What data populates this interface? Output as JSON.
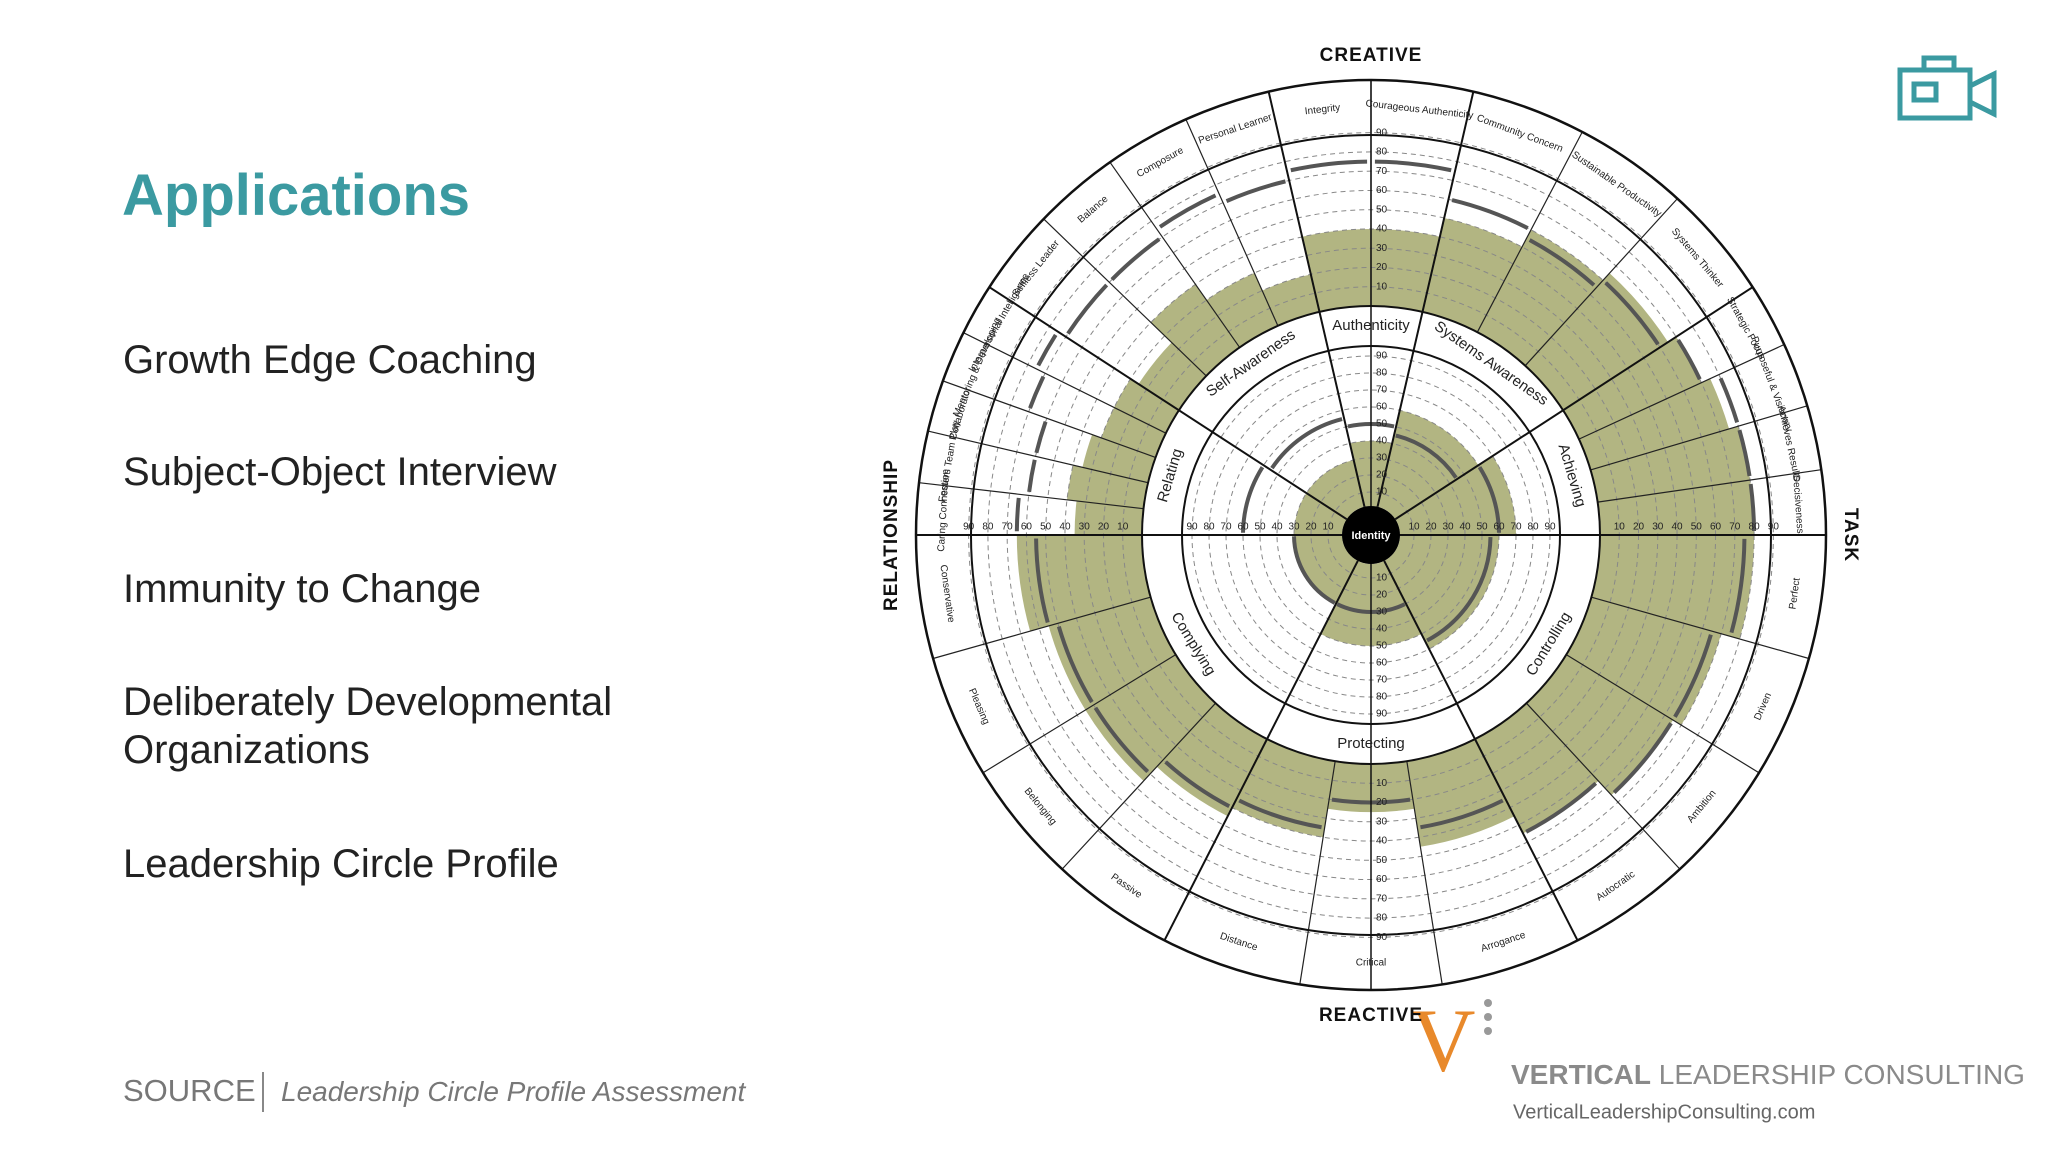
{
  "slide": {
    "title": "Applications",
    "items": [
      "Growth Edge Coaching",
      "Subject-Object Interview",
      "Immunity to Change",
      "Deliberately Developmental",
      "Organizations",
      "Leadership Circle Profile"
    ],
    "source": {
      "label": "SOURCE",
      "text": "Leadership Circle Profile Assessment"
    },
    "logo": {
      "mark": "V",
      "bold": "VERTICAL",
      "rest": "LEADERSHIP CONSULTING",
      "url": "VerticalLeadershipConsulting.com"
    }
  },
  "circle": {
    "axes": {
      "top": "CREATIVE",
      "right": "TASK",
      "bottom": "REACTIVE",
      "left": "RELATIONSHIP"
    },
    "center": "Identity",
    "scale": [
      10,
      20,
      30,
      40,
      50,
      60,
      70,
      80,
      90
    ],
    "dimensions": [
      {
        "label": "Authenticity",
        "score": 40,
        "norm": 50,
        "competencies": [
          {
            "label": "Integrity",
            "score": 40,
            "norm": 75
          },
          {
            "label": "Courageous Authenticity",
            "score": 40,
            "norm": 75
          }
        ]
      },
      {
        "label": "Systems Awareness",
        "score": 60,
        "norm": 45,
        "competencies": [
          {
            "label": "Community Concern",
            "score": 50,
            "norm": 60
          },
          {
            "label": "Sustainable Productivity",
            "score": 60,
            "norm": 55
          },
          {
            "label": "Systems Thinker",
            "score": 65,
            "norm": 60
          }
        ]
      },
      {
        "label": "Achieving",
        "score": 70,
        "norm": 60,
        "competencies": [
          {
            "label": "Strategic Focus",
            "score": 70,
            "norm": 70
          },
          {
            "label": "Purposeful & Visionary",
            "score": 75,
            "norm": 80
          },
          {
            "label": "Achieves Results",
            "score": 80,
            "norm": 80
          },
          {
            "label": "Decisiveness",
            "score": 80,
            "norm": 80
          }
        ]
      },
      {
        "label": "Controlling",
        "score": 60,
        "norm": 55,
        "competencies": [
          {
            "label": "Perfect",
            "score": 80,
            "norm": 75
          },
          {
            "label": "Driven",
            "score": 70,
            "norm": 65
          },
          {
            "label": "Ambition",
            "score": 65,
            "norm": 65
          },
          {
            "label": "Autocratic",
            "score": 55,
            "norm": 55
          }
        ]
      },
      {
        "label": "Protecting",
        "score": 50,
        "norm": 30,
        "competencies": [
          {
            "label": "Arrogance",
            "score": 45,
            "norm": 35
          },
          {
            "label": "Critical",
            "score": 25,
            "norm": 20
          },
          {
            "label": "Distance",
            "score": 40,
            "norm": 35
          }
        ]
      },
      {
        "label": "Complying",
        "score": 30,
        "norm": 30,
        "competencies": [
          {
            "label": "Passive",
            "score": 45,
            "norm": 40
          },
          {
            "label": "Belonging",
            "score": 55,
            "norm": 50
          },
          {
            "label": "Pleasing",
            "score": 55,
            "norm": 50
          },
          {
            "label": "Conservative",
            "score": 65,
            "norm": 55
          }
        ]
      },
      {
        "label": "Relating",
        "score": 30,
        "norm": 60,
        "competencies": [
          {
            "label": "Caring Connection",
            "score": 35,
            "norm": 65
          },
          {
            "label": "Fosters Team Play",
            "score": 40,
            "norm": 60
          },
          {
            "label": "Collaborator",
            "score": 35,
            "norm": 60
          },
          {
            "label": "Mentoring & Developing",
            "score": 30,
            "norm": 70
          },
          {
            "label": "Interpersonal Intelligence",
            "score": 30,
            "norm": 75
          }
        ]
      },
      {
        "label": "Self-Awareness",
        "score": 30,
        "norm": 55,
        "competencies": [
          {
            "label": "Selfless Leader",
            "score": 25,
            "norm": 70
          },
          {
            "label": "Balance",
            "score": 40,
            "norm": 70
          },
          {
            "label": "Composure",
            "score": 30,
            "norm": 75
          },
          {
            "label": "Personal Learner",
            "score": 20,
            "norm": 70
          }
        ]
      }
    ]
  }
}
